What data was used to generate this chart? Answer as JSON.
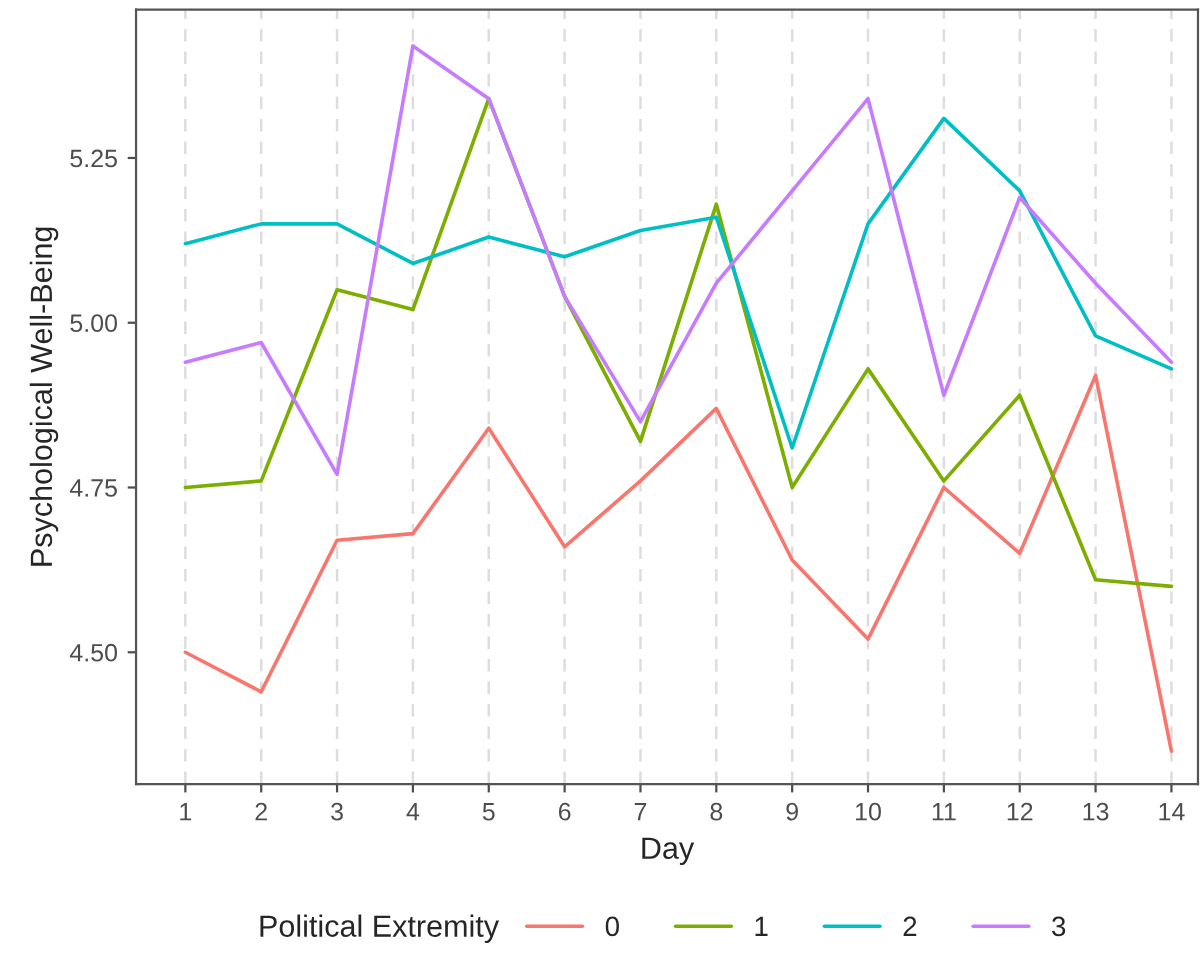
{
  "chart_data": {
    "type": "line",
    "xlabel": "Day",
    "ylabel": "Psychological Well-Being",
    "legend_title": "Political Extremity",
    "legend": "bottom",
    "grid": "x",
    "x": [
      1,
      2,
      3,
      4,
      5,
      6,
      7,
      8,
      9,
      10,
      11,
      12,
      13,
      14
    ],
    "xlim": [
      0.35,
      14.35
    ],
    "xticks": [
      1,
      2,
      3,
      4,
      5,
      6,
      7,
      8,
      9,
      10,
      11,
      12,
      13,
      14
    ],
    "ylim": [
      4.3,
      5.475
    ],
    "yticks": [
      {
        "value": 4.5,
        "label": "4.50"
      },
      {
        "value": 4.75,
        "label": "4.75"
      },
      {
        "value": 5.0,
        "label": "5.00"
      },
      {
        "value": 5.25,
        "label": "5.25"
      }
    ],
    "series": [
      {
        "name": "0",
        "color": "#f8766d",
        "values": [
          4.5,
          4.44,
          4.67,
          4.68,
          4.84,
          4.66,
          4.76,
          4.87,
          4.64,
          4.52,
          4.75,
          4.65,
          4.92,
          4.35
        ]
      },
      {
        "name": "1",
        "color": "#7cae00",
        "values": [
          4.75,
          4.76,
          5.05,
          5.02,
          5.34,
          5.04,
          4.82,
          5.18,
          4.75,
          4.93,
          4.76,
          4.89,
          4.61,
          4.6
        ]
      },
      {
        "name": "2",
        "color": "#00bfc4",
        "values": [
          5.12,
          5.15,
          5.15,
          5.09,
          5.13,
          5.1,
          5.14,
          5.16,
          4.81,
          5.15,
          5.31,
          5.2,
          4.98,
          4.93
        ]
      },
      {
        "name": "3",
        "color": "#c77cff",
        "values": [
          4.94,
          4.97,
          4.77,
          5.42,
          5.34,
          5.04,
          4.85,
          5.06,
          5.2,
          5.34,
          4.89,
          5.19,
          5.06,
          4.94
        ]
      }
    ]
  }
}
